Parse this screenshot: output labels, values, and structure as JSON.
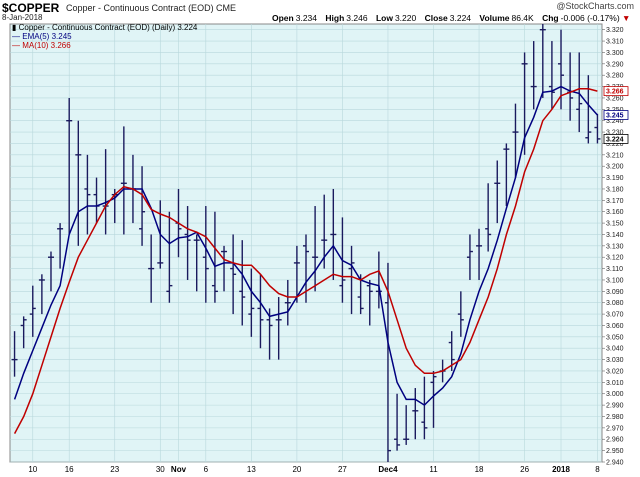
{
  "header": {
    "symbol": "$COPPER",
    "description": "Copper - Continuous Contract (EOD) CME",
    "date": "8-Jan-2018",
    "brand": "@StockCharts.com",
    "quote": {
      "open_label": "Open",
      "open": "3.234",
      "high_label": "High",
      "high": "3.246",
      "low_label": "Low",
      "low": "3.220",
      "close_label": "Close",
      "close": "3.224",
      "volume_label": "Volume",
      "volume": "86.4K",
      "chg_label": "Chg",
      "chg": "-0.006 (-0.17%)",
      "chg_arrow": "▼"
    }
  },
  "legend": {
    "ohlc": "Copper - Continuous Contract (EOD) (Daily) 3.224",
    "ema": "EMA(5) 3.245",
    "ma": "MA(10) 3.266"
  },
  "chart_data": {
    "type": "ohlc",
    "ylim": [
      2.94,
      3.325
    ],
    "y_ticks": [
      2.94,
      2.95,
      2.96,
      2.97,
      2.98,
      2.99,
      3.0,
      3.01,
      3.02,
      3.03,
      3.04,
      3.05,
      3.06,
      3.07,
      3.08,
      3.09,
      3.1,
      3.11,
      3.12,
      3.13,
      3.14,
      3.15,
      3.16,
      3.17,
      3.18,
      3.19,
      3.2,
      3.21,
      3.22,
      3.23,
      3.24,
      3.25,
      3.26,
      3.27,
      3.28,
      3.29,
      3.3,
      3.31,
      3.32
    ],
    "x_labels": [
      {
        "label": "10",
        "i": 2,
        "bold": false
      },
      {
        "label": "16",
        "i": 6,
        "bold": false
      },
      {
        "label": "23",
        "i": 11,
        "bold": false
      },
      {
        "label": "30",
        "i": 16,
        "bold": false
      },
      {
        "label": "Nov",
        "i": 18,
        "bold": true
      },
      {
        "label": "6",
        "i": 21,
        "bold": false
      },
      {
        "label": "13",
        "i": 26,
        "bold": false
      },
      {
        "label": "20",
        "i": 31,
        "bold": false
      },
      {
        "label": "27",
        "i": 36,
        "bold": false
      },
      {
        "label": "Dec4",
        "i": 41,
        "bold": true
      },
      {
        "label": "11",
        "i": 46,
        "bold": false
      },
      {
        "label": "18",
        "i": 51,
        "bold": false
      },
      {
        "label": "26",
        "i": 56,
        "bold": false
      },
      {
        "label": "2018",
        "i": 60,
        "bold": true
      },
      {
        "label": "8",
        "i": 64,
        "bold": false
      }
    ],
    "ohlc": [
      [
        3.03,
        3.055,
        3.015,
        3.03
      ],
      [
        3.06,
        3.068,
        3.04,
        3.065
      ],
      [
        3.07,
        3.095,
        3.05,
        3.075
      ],
      [
        3.1,
        3.105,
        3.07,
        3.1
      ],
      [
        3.12,
        3.125,
        3.09,
        3.12
      ],
      [
        3.145,
        3.15,
        3.11,
        3.145
      ],
      [
        3.24,
        3.26,
        3.14,
        3.24
      ],
      [
        3.21,
        3.24,
        3.13,
        3.21
      ],
      [
        3.18,
        3.21,
        3.14,
        3.175
      ],
      [
        3.175,
        3.19,
        3.15,
        3.165
      ],
      [
        3.165,
        3.215,
        3.14,
        3.165
      ],
      [
        3.175,
        3.18,
        3.15,
        3.175
      ],
      [
        3.185,
        3.235,
        3.14,
        3.185
      ],
      [
        3.18,
        3.21,
        3.15,
        3.18
      ],
      [
        3.145,
        3.2,
        3.13,
        3.16
      ],
      [
        3.11,
        3.14,
        3.08,
        3.11
      ],
      [
        3.115,
        3.17,
        3.11,
        3.115
      ],
      [
        3.09,
        3.16,
        3.08,
        3.095
      ],
      [
        3.15,
        3.18,
        3.12,
        3.145
      ],
      [
        3.14,
        3.165,
        3.1,
        3.135
      ],
      [
        3.135,
        3.14,
        3.09,
        3.135
      ],
      [
        3.12,
        3.165,
        3.08,
        3.11
      ],
      [
        3.095,
        3.16,
        3.08,
        3.09
      ],
      [
        3.125,
        3.13,
        3.09,
        3.125
      ],
      [
        3.11,
        3.14,
        3.07,
        3.105
      ],
      [
        3.09,
        3.135,
        3.06,
        3.085
      ],
      [
        3.07,
        3.11,
        3.05,
        3.075
      ],
      [
        3.075,
        3.105,
        3.04,
        3.065
      ],
      [
        3.065,
        3.075,
        3.03,
        3.06
      ],
      [
        3.065,
        3.085,
        3.03,
        3.065
      ],
      [
        3.08,
        3.1,
        3.06,
        3.08
      ],
      [
        3.115,
        3.13,
        3.08,
        3.115
      ],
      [
        3.13,
        3.14,
        3.08,
        3.125
      ],
      [
        3.12,
        3.165,
        3.09,
        3.12
      ],
      [
        3.135,
        3.175,
        3.11,
        3.135
      ],
      [
        3.14,
        3.18,
        3.1,
        3.14
      ],
      [
        3.095,
        3.155,
        3.08,
        3.1
      ],
      [
        3.11,
        3.13,
        3.07,
        3.115
      ],
      [
        3.085,
        3.105,
        3.07,
        3.075
      ],
      [
        3.095,
        3.1,
        3.06,
        3.09
      ],
      [
        3.09,
        3.125,
        3.075,
        3.09
      ],
      [
        3.08,
        3.115,
        2.94,
        2.95
      ],
      [
        2.96,
        3.0,
        2.95,
        2.955
      ],
      [
        2.96,
        2.99,
        2.955,
        2.96
      ],
      [
        2.985,
        3.005,
        2.96,
        2.985
      ],
      [
        2.975,
        3.015,
        2.96,
        2.97
      ],
      [
        3.01,
        3.02,
        2.97,
        3.015
      ],
      [
        3.02,
        3.03,
        3.01,
        3.02
      ],
      [
        3.045,
        3.055,
        3.02,
        3.03
      ],
      [
        3.07,
        3.09,
        3.05,
        3.065
      ],
      [
        3.12,
        3.14,
        3.1,
        3.125
      ],
      [
        3.13,
        3.145,
        3.1,
        3.13
      ],
      [
        3.145,
        3.185,
        3.125,
        3.14
      ],
      [
        3.185,
        3.205,
        3.15,
        3.185
      ],
      [
        3.215,
        3.22,
        3.165,
        3.215
      ],
      [
        3.23,
        3.255,
        3.19,
        3.23
      ],
      [
        3.29,
        3.3,
        3.21,
        3.29
      ],
      [
        3.27,
        3.31,
        3.25,
        3.27
      ],
      [
        3.32,
        3.325,
        3.26,
        3.32
      ],
      [
        3.27,
        3.31,
        3.25,
        3.265
      ],
      [
        3.29,
        3.32,
        3.25,
        3.28
      ],
      [
        3.265,
        3.3,
        3.24,
        3.26
      ],
      [
        3.25,
        3.3,
        3.23,
        3.255
      ],
      [
        3.225,
        3.28,
        3.22,
        3.23
      ],
      [
        3.234,
        3.246,
        3.22,
        3.224
      ]
    ],
    "series": [
      {
        "name": "EMA(5)",
        "color": "#000080",
        "values": [
          2.995,
          3.018,
          3.038,
          3.058,
          3.078,
          3.095,
          3.14,
          3.16,
          3.165,
          3.165,
          3.168,
          3.172,
          3.18,
          3.18,
          3.18,
          3.163,
          3.14,
          3.132,
          3.137,
          3.138,
          3.142,
          3.128,
          3.112,
          3.115,
          3.115,
          3.105,
          3.09,
          3.08,
          3.068,
          3.07,
          3.072,
          3.085,
          3.098,
          3.108,
          3.12,
          3.13,
          3.117,
          3.113,
          3.1,
          3.097,
          3.095,
          3.045,
          3.01,
          2.995,
          2.995,
          2.99,
          2.998,
          3.005,
          3.015,
          3.035,
          3.065,
          3.09,
          3.11,
          3.135,
          3.163,
          3.19,
          3.225,
          3.243,
          3.265,
          3.266,
          3.27,
          3.266,
          3.264,
          3.254,
          3.245
        ]
      },
      {
        "name": "MA(10)",
        "color": "#c00000",
        "values": [
          2.965,
          2.98,
          3.0,
          3.025,
          3.05,
          3.075,
          3.098,
          3.12,
          3.135,
          3.15,
          3.165,
          3.175,
          3.182,
          3.18,
          3.175,
          3.162,
          3.158,
          3.155,
          3.15,
          3.145,
          3.142,
          3.138,
          3.128,
          3.118,
          3.115,
          3.113,
          3.113,
          3.105,
          3.095,
          3.088,
          3.085,
          3.085,
          3.09,
          3.095,
          3.1,
          3.105,
          3.103,
          3.103,
          3.1,
          3.105,
          3.108,
          3.09,
          3.065,
          3.04,
          3.025,
          3.018,
          3.018,
          3.02,
          3.025,
          3.03,
          3.045,
          3.065,
          3.085,
          3.11,
          3.14,
          3.165,
          3.195,
          3.215,
          3.24,
          3.25,
          3.262,
          3.265,
          3.268,
          3.268,
          3.266
        ]
      }
    ],
    "right_markers": [
      {
        "value": "3.266",
        "y": 3.266,
        "color": "#c00000"
      },
      {
        "value": "3.245",
        "y": 3.245,
        "color": "#000080"
      },
      {
        "value": "3.224",
        "y": 3.224,
        "color": "#000000"
      }
    ]
  }
}
